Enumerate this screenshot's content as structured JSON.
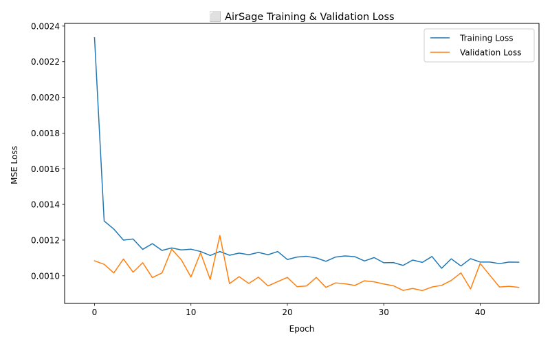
{
  "chart_data": {
    "type": "line",
    "title": "⬜ AirSage Training & Validation Loss",
    "xlabel": "Epoch",
    "ylabel": "MSE Loss",
    "xlim": [
      -3.1,
      46.1
    ],
    "ylim": [
      0.000845,
      0.002415
    ],
    "xticks": [
      0,
      10,
      20,
      30,
      40
    ],
    "xtick_labels": [
      "0",
      "10",
      "20",
      "30",
      "40"
    ],
    "yticks": [
      0.001,
      0.0012,
      0.0014,
      0.0016,
      0.0018,
      0.002,
      0.0022,
      0.0024
    ],
    "ytick_labels": [
      "0.0010",
      "0.0012",
      "0.0014",
      "0.0016",
      "0.0018",
      "0.0020",
      "0.0022",
      "0.0024"
    ],
    "grid": false,
    "legend_position": "top-right",
    "x": [
      0,
      1,
      2,
      3,
      4,
      5,
      6,
      7,
      8,
      9,
      10,
      11,
      12,
      13,
      14,
      15,
      16,
      17,
      18,
      19,
      20,
      21,
      22,
      23,
      24,
      25,
      26,
      27,
      28,
      29,
      30,
      31,
      32,
      33,
      34,
      35,
      36,
      37,
      38,
      39,
      40,
      41,
      42,
      43,
      44
    ],
    "series": [
      {
        "name": "Training Loss",
        "color": "#1f77b4",
        "values": [
          0.002335,
          0.001307,
          0.001262,
          0.0012,
          0.001206,
          0.001148,
          0.00118,
          0.001142,
          0.001156,
          0.001145,
          0.001149,
          0.001136,
          0.001114,
          0.001136,
          0.001115,
          0.001127,
          0.001118,
          0.001131,
          0.001118,
          0.001136,
          0.001091,
          0.001105,
          0.001109,
          0.0011,
          0.001081,
          0.001105,
          0.001111,
          0.001107,
          0.001083,
          0.001102,
          0.001073,
          0.001074,
          0.001058,
          0.001088,
          0.001075,
          0.001108,
          0.001042,
          0.001095,
          0.001055,
          0.001096,
          0.001077,
          0.001077,
          0.001068,
          0.001077,
          0.001076
        ]
      },
      {
        "name": "Validation Loss",
        "color": "#ff7f0e",
        "values": [
          0.001084,
          0.001064,
          0.001016,
          0.001094,
          0.00102,
          0.001073,
          0.00099,
          0.001016,
          0.001149,
          0.00109,
          0.000993,
          0.001129,
          0.000979,
          0.001226,
          0.000956,
          0.000995,
          0.000957,
          0.000992,
          0.000943,
          0.000967,
          0.000991,
          0.000939,
          0.000943,
          0.000991,
          0.000935,
          0.00096,
          0.000955,
          0.000946,
          0.000972,
          0.000966,
          0.000954,
          0.000944,
          0.000918,
          0.000929,
          0.000917,
          0.000937,
          0.000946,
          0.000974,
          0.001016,
          0.000926,
          0.001069,
          0.001003,
          0.000937,
          0.000941,
          0.000935
        ]
      }
    ]
  }
}
